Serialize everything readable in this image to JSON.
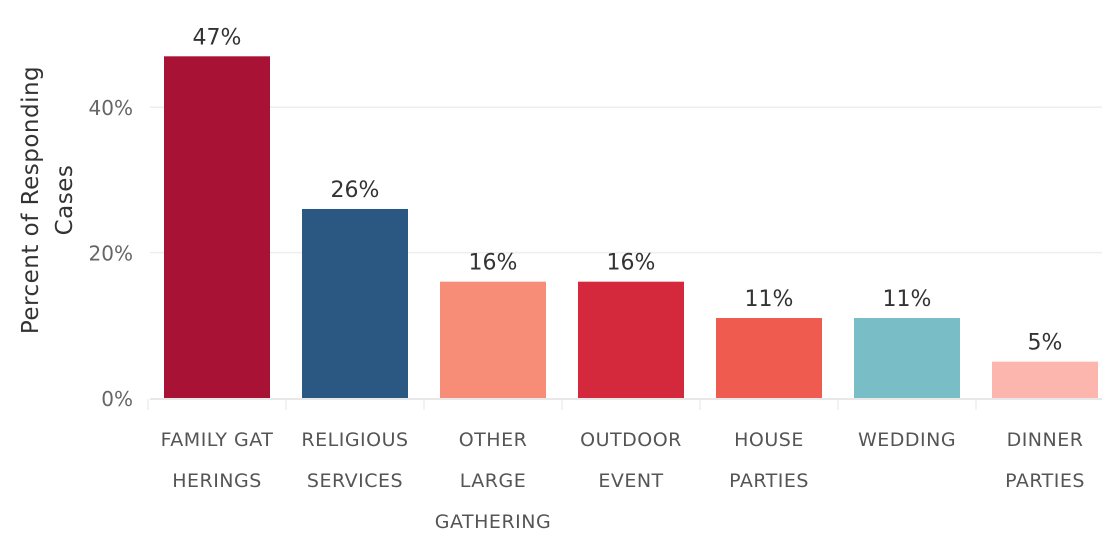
{
  "chart_data": {
    "type": "bar",
    "title": "",
    "xlabel": "",
    "ylabel_lines": [
      "Percent of Responding",
      "Cases"
    ],
    "ylim": [
      0,
      50
    ],
    "yticks": [
      0,
      20,
      40
    ],
    "ytick_labels": [
      "0%",
      "20%",
      "40%"
    ],
    "grid": true,
    "legend": "none",
    "categories": [
      {
        "lines": [
          "FAMILY GAT",
          "HERINGS"
        ]
      },
      {
        "lines": [
          "RELIGIOUS",
          "SERVICES"
        ]
      },
      {
        "lines": [
          "OTHER",
          "LARGE",
          "GATHERING"
        ]
      },
      {
        "lines": [
          "OUTDOOR",
          "EVENT"
        ]
      },
      {
        "lines": [
          "HOUSE",
          "PARTIES"
        ]
      },
      {
        "lines": [
          "WEDDING"
        ]
      },
      {
        "lines": [
          "DINNER",
          "PARTIES"
        ]
      }
    ],
    "values": [
      47,
      26,
      16,
      16,
      11,
      11,
      5
    ],
    "value_labels": [
      "47%",
      "26%",
      "16%",
      "16%",
      "11%",
      "11%",
      "5%"
    ],
    "colors": [
      "#a81235",
      "#2b5882",
      "#f78c77",
      "#d4283c",
      "#ef5b4e",
      "#79bdc6",
      "#fdb6ad"
    ]
  }
}
